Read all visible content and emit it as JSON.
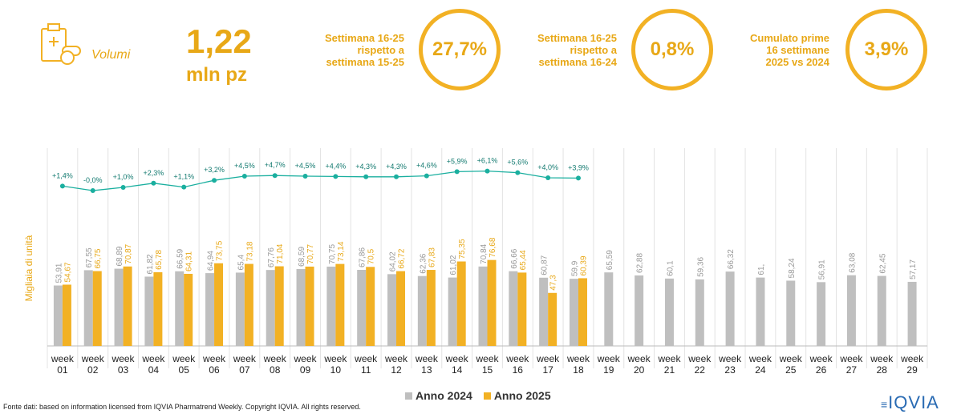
{
  "header": {
    "label": "Volumi",
    "value": "1,22",
    "unit": "mln pz"
  },
  "kpis": [
    {
      "label": "Settimana 16-25\nrispetto a\nsettimana 15-25",
      "value": "27,7%"
    },
    {
      "label": "Settimana 16-25\nrispetto a\nsettimana 16-24",
      "value": "0,8%"
    },
    {
      "label": "Cumulato prime\n16 settimane\n2025 vs 2024",
      "value": "3,9%"
    }
  ],
  "chart_data": {
    "type": "bar",
    "y_label": "Migliaia di unità",
    "categories": [
      "week 01",
      "week 02",
      "week 03",
      "week 04",
      "week 05",
      "week 06",
      "week 07",
      "week 08",
      "week 09",
      "week 10",
      "week 11",
      "week 12",
      "week 13",
      "week 14",
      "week 15",
      "week 16",
      "week 17",
      "week 18",
      "week 19",
      "week 20",
      "week 21",
      "week 22",
      "week 23",
      "week 24",
      "week 25",
      "week 26",
      "week 27",
      "week 28",
      "week 29"
    ],
    "ylim": [
      0,
      250
    ],
    "y2lim": [
      -5.5,
      14.5
    ],
    "series": [
      {
        "name": "Anno 2024",
        "color": "#bfbfbf",
        "values": [
          53.91,
          67.55,
          68.89,
          61.82,
          66.59,
          64.94,
          65.4,
          67.76,
          68.59,
          70.75,
          67.86,
          64.02,
          62.36,
          61.02,
          70.84,
          66.66,
          60.87,
          59.9,
          65.59,
          62.88,
          60.1,
          59.36,
          66.32,
          61,
          58.24,
          56.91,
          63.08,
          62.45,
          57.17
        ],
        "value_labels": [
          "53,91",
          "67,55",
          "68,89",
          "61,82",
          "66,59",
          "64,94",
          "65,4",
          "67,76",
          "68,59",
          "70,75",
          "67,86",
          "64,02",
          "62,36",
          "61,02",
          "70,84",
          "66,66",
          "60,87",
          "59,9",
          "65,59",
          "62,88",
          "60,1",
          "59,36",
          "66,32",
          "61,",
          "58,24",
          "56,91",
          "63,08",
          "62,45",
          "57,17"
        ]
      },
      {
        "name": "Anno 2025",
        "color": "#f2b124",
        "values": [
          54.67,
          66.75,
          70.87,
          65.78,
          64.31,
          73.75,
          73.18,
          71.04,
          70.77,
          73.14,
          70.5,
          66.72,
          67.83,
          75.35,
          76.68,
          65.44,
          47.3,
          60.39,
          null,
          null,
          null,
          null,
          null,
          null,
          null,
          null,
          null,
          null,
          null
        ],
        "value_labels": [
          "54,67",
          "66,75",
          "70,87",
          "65,78",
          "64,31",
          "73,75",
          "73,18",
          "71,04",
          "70,77",
          "73,14",
          "70,5",
          "66,72",
          "67,83",
          "75,35",
          "76,68",
          "65,44",
          "47,3",
          "60,39",
          null,
          null,
          null,
          null,
          null,
          null,
          null,
          null,
          null,
          null,
          null
        ]
      },
      {
        "type": "line",
        "axis": "y2",
        "color": "#1aaf9f",
        "values": [
          1.4,
          0,
          1.0,
          2.3,
          1.1,
          3.2,
          4.5,
          4.7,
          4.5,
          4.4,
          4.3,
          4.3,
          4.6,
          5.9,
          6.1,
          5.6,
          4.0,
          3.9,
          null,
          null,
          null,
          null,
          null,
          null,
          null,
          null,
          null,
          null,
          null
        ],
        "value_labels": [
          "+1,4%",
          "-0,0%",
          "+1,0%",
          "+2,3%",
          "+1,1%",
          "+3,2%",
          "+4,5%",
          "+4,7%",
          "+4,5%",
          "+4,4%",
          "+4,3%",
          "+4,3%",
          "+4,6%",
          "+5,9%",
          "+6,1%",
          "+5,6%",
          "+4,0%",
          "+3,9%",
          null,
          null,
          null,
          null,
          null,
          null,
          null,
          null,
          null,
          null,
          null
        ]
      }
    ]
  },
  "footer": {
    "source": "Fonte dati: based on information licensed from IQVIA Pharmatrend Weekly. Copyright IQVIA. All rights reserved.",
    "logo": "IQVIA"
  }
}
